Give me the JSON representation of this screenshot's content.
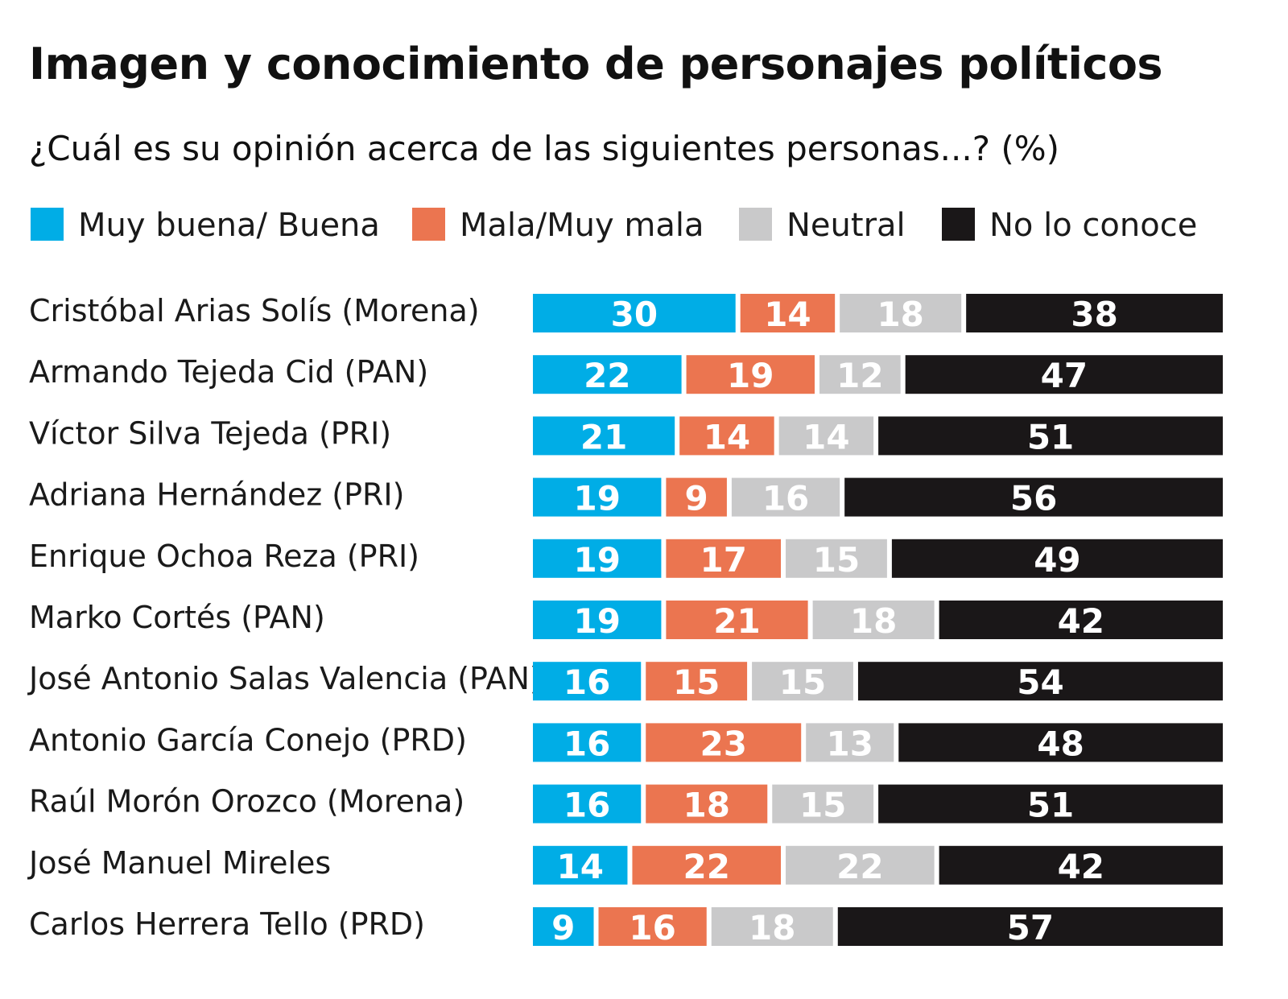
{
  "chart_data": {
    "type": "bar",
    "orientation": "horizontal",
    "stacked": true,
    "title": "Imagen y conocimiento de personajes políticos",
    "subtitle": "¿Cuál es su opinión acerca de las siguientes personas...? (%)",
    "xlim": [
      0,
      100
    ],
    "grid": false,
    "legend_position": "top",
    "categories": [
      "Cristóbal Arias Solís (Morena)",
      "Armando Tejeda Cid (PAN)",
      "Víctor Silva Tejeda (PRI)",
      "Adriana Hernández (PRI)",
      "Enrique Ochoa Reza (PRI)",
      "Marko Cortés (PAN)",
      "José Antonio Salas Valencia (PAN)",
      "Antonio García Conejo (PRD)",
      "Raúl Morón Orozco (Morena)",
      "José Manuel Mireles",
      "Carlos Herrera Tello (PRD)"
    ],
    "series": [
      {
        "name": "Muy buena/ Buena",
        "color": "#00ADE6",
        "label_color": "#ffffff",
        "values": [
          30,
          22,
          21,
          19,
          19,
          19,
          16,
          16,
          16,
          14,
          9
        ]
      },
      {
        "name": "Mala/Muy mala",
        "color": "#EB7550",
        "label_color": "#ffffff",
        "values": [
          14,
          19,
          14,
          9,
          17,
          21,
          15,
          23,
          18,
          22,
          16
        ]
      },
      {
        "name": "Neutral",
        "color": "#C9C9CA",
        "label_color": "#ffffff",
        "values": [
          18,
          12,
          14,
          16,
          15,
          18,
          15,
          13,
          15,
          22,
          18
        ]
      },
      {
        "name": "No lo conoce",
        "color": "#1A1718",
        "label_color": "#ffffff",
        "values": [
          38,
          47,
          51,
          56,
          49,
          42,
          54,
          48,
          51,
          42,
          57
        ]
      }
    ]
  }
}
